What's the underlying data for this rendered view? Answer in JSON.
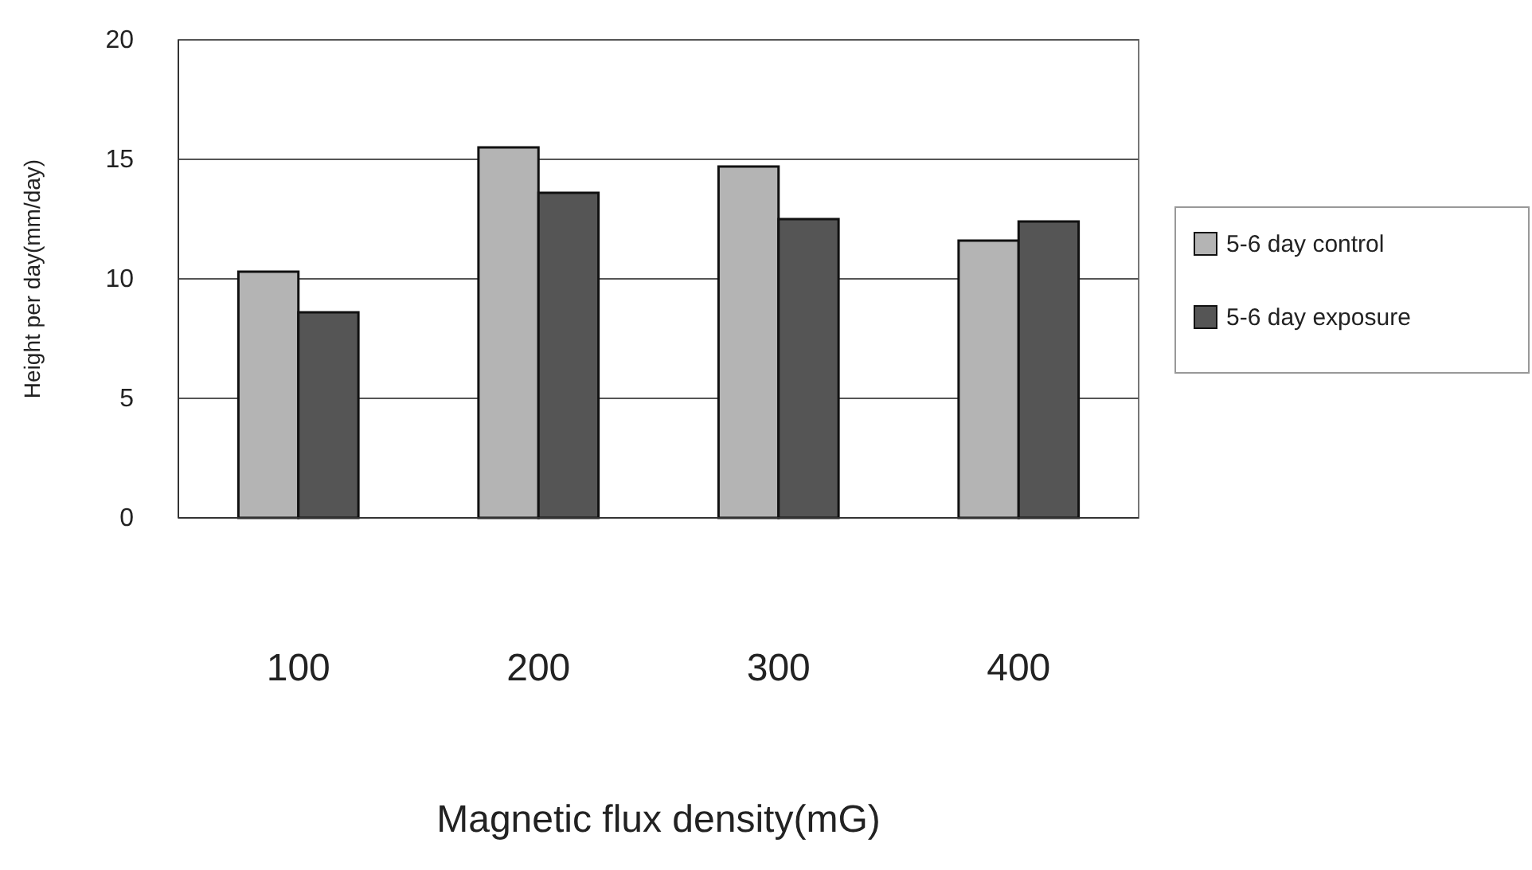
{
  "chart_data": {
    "type": "bar",
    "xlabel": "Magnetic flux density(mG)",
    "ylabel": "Height per day(mm/day)",
    "categories": [
      "100",
      "200",
      "300",
      "400"
    ],
    "series": [
      {
        "name": "5-6 day control",
        "color": "#b4b4b4",
        "values": [
          10.3,
          15.5,
          14.7,
          11.6
        ]
      },
      {
        "name": "5-6 day exposure",
        "color": "#555555",
        "values": [
          8.6,
          13.6,
          12.5,
          12.4
        ]
      }
    ],
    "ylim": [
      0,
      20
    ],
    "yticks": [
      0,
      5,
      10,
      15,
      20
    ],
    "grid": "y",
    "legend": "right"
  }
}
